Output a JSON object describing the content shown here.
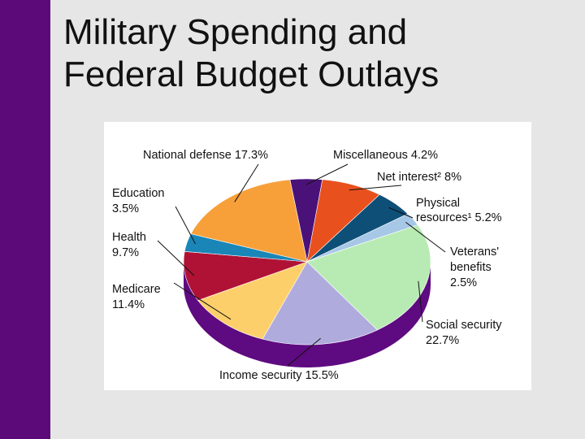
{
  "slide": {
    "title_line1": "Military Spending and",
    "title_line2": "Federal Budget Outlays"
  },
  "colors": {
    "sidebar": "#5c0a7a",
    "background": "#e6e6e6"
  },
  "chart_data": {
    "type": "pie",
    "title": "",
    "legend": "none",
    "slices": [
      {
        "name": "Miscellaneous",
        "value": 4.2,
        "label": "Miscellaneous 4.2%",
        "color": "#4a1278"
      },
      {
        "name": "Net interest",
        "value": 8.0,
        "label": "Net interest² 8%",
        "color": "#e8501e"
      },
      {
        "name": "Physical resources",
        "value": 5.2,
        "label": "Physical resources¹ 5.2%",
        "color": "#0e4f78"
      },
      {
        "name": "Veterans' benefits",
        "value": 2.5,
        "label": "Veterans' benefits 2.5%",
        "color": "#a6c8e6"
      },
      {
        "name": "Social security",
        "value": 22.7,
        "label": "Social security 22.7%",
        "color": "#b8ebb4"
      },
      {
        "name": "Income security",
        "value": 15.5,
        "label": "Income security 15.5%",
        "color": "#b0abdd"
      },
      {
        "name": "Medicare",
        "value": 11.4,
        "label": "Medicare 11.4%",
        "color": "#fccf6b"
      },
      {
        "name": "Health",
        "value": 9.7,
        "label": "Health 9.7%",
        "color": "#b01235"
      },
      {
        "name": "Education",
        "value": 3.5,
        "label": "Education 3.5%",
        "color": "#1a86b8"
      },
      {
        "name": "National defense",
        "value": 17.3,
        "label": "National defense 17.3%",
        "color": "#f7a03a"
      }
    ],
    "side_color": "#5e0a80"
  }
}
